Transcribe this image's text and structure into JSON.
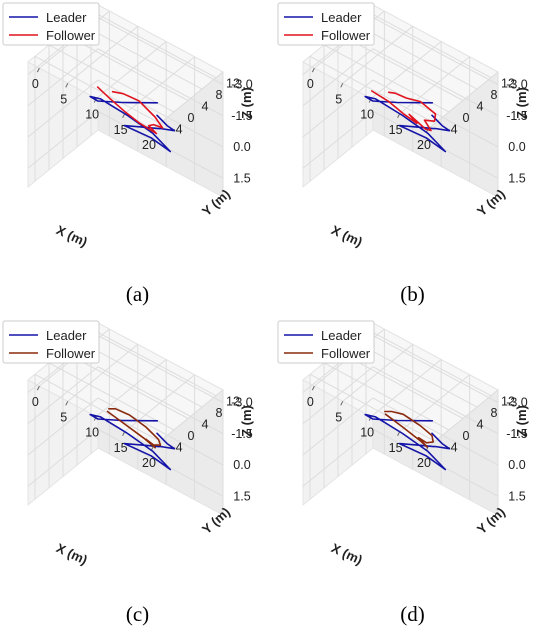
{
  "chart_data": [
    {
      "type": "line",
      "caption": "(a)",
      "xlabel": "X (m)",
      "ylabel": "Y (m)",
      "zlabel": "Z (m)",
      "xticks": [
        "0",
        "5",
        "10",
        "15",
        "20"
      ],
      "yticks": [
        "-4",
        "0",
        "4",
        "8",
        "12"
      ],
      "zticks": [
        "-3.0",
        "-1.5",
        "0.0",
        "1.5"
      ],
      "grid": true,
      "legend_position": "top-left",
      "series": [
        {
          "name": "Leader",
          "color": "#1414a8",
          "x": [
            14.6,
            10.0,
            5.6,
            3.4,
            4.0,
            7.4,
            11.6,
            15.4,
            12.4,
            9.2,
            12.6,
            14.4,
            15.0,
            17.6,
            17.8,
            17.0
          ],
          "y": [
            4.0,
            1.4,
            1.6,
            3.0,
            5.0,
            7.2,
            7.6,
            6.4,
            5.8,
            3.4,
            4.2,
            4.6,
            4.2,
            4.0,
            1.6,
            0.0
          ],
          "z": [
            -2.7,
            -2.4,
            -1.8,
            -1.5,
            -1.2,
            -0.6,
            -0.3,
            -0.15,
            -0.45,
            -0.9,
            -1.2,
            -1.35,
            -1.5,
            -1.8,
            -2.4,
            -3.0
          ]
        },
        {
          "name": "Follower",
          "color": "#e0141e",
          "x": [
            4.6,
            6.0,
            8.4,
            10.6,
            13.2,
            12.6,
            14.2,
            16.4,
            15.8,
            13.2,
            10.2,
            7.6
          ],
          "y": [
            3.2,
            4.2,
            5.0,
            5.6,
            6.0,
            4.8,
            3.6,
            2.6,
            1.4,
            1.0,
            1.4,
            2.6
          ],
          "z": [
            -2.1,
            -1.65,
            -1.2,
            -0.9,
            -0.75,
            -1.2,
            -1.65,
            -1.95,
            -2.55,
            -3.0,
            -2.85,
            -2.4
          ]
        }
      ]
    },
    {
      "type": "line",
      "caption": "(b)",
      "xlabel": "X (m)",
      "ylabel": "Y (m)",
      "zlabel": "Z (m)",
      "xticks": [
        "0",
        "5",
        "10",
        "15",
        "20"
      ],
      "yticks": [
        "-4",
        "0",
        "4",
        "8",
        "12"
      ],
      "zticks": [
        "-3.0",
        "-1.5",
        "0.0",
        "1.5"
      ],
      "grid": true,
      "legend_position": "top-left",
      "series": [
        {
          "name": "Leader",
          "color": "#1414a8",
          "x": [
            14.6,
            10.0,
            5.6,
            3.4,
            4.0,
            7.4,
            11.6,
            15.4,
            12.4,
            9.2,
            12.6,
            14.4,
            15.0,
            17.6,
            17.8,
            17.0
          ],
          "y": [
            4.0,
            1.4,
            1.6,
            3.0,
            5.0,
            7.2,
            7.6,
            6.4,
            5.8,
            3.4,
            4.2,
            4.6,
            4.2,
            4.0,
            1.6,
            0.0
          ],
          "z": [
            -2.7,
            -2.4,
            -1.8,
            -1.5,
            -1.2,
            -0.6,
            -0.3,
            -0.15,
            -0.45,
            -0.9,
            -1.2,
            -1.35,
            -1.5,
            -1.8,
            -2.4,
            -3.0
          ]
        },
        {
          "name": "Follower",
          "color": "#e0141e",
          "x": [
            4.2,
            6.6,
            9.0,
            11.0,
            10.4,
            12.4,
            14.0,
            13.6,
            15.6,
            16.4,
            14.0,
            11.6,
            9.4,
            7.8
          ],
          "y": [
            3.6,
            4.6,
            5.0,
            5.4,
            4.2,
            5.6,
            4.6,
            3.4,
            3.0,
            2.0,
            1.6,
            1.4,
            1.8,
            2.6
          ],
          "z": [
            -1.8,
            -1.5,
            -1.2,
            -1.0,
            -1.5,
            -0.9,
            -1.2,
            -1.8,
            -2.1,
            -2.7,
            -3.0,
            -2.85,
            -2.7,
            -2.4
          ]
        }
      ]
    },
    {
      "type": "line",
      "caption": "(c)",
      "xlabel": "X (m)",
      "ylabel": "Y (m)",
      "zlabel": "Z (m)",
      "xticks": [
        "0",
        "5",
        "10",
        "15",
        "20"
      ],
      "yticks": [
        "-4",
        "0",
        "4",
        "8",
        "12"
      ],
      "zticks": [
        "-3.0",
        "-1.5",
        "0.0",
        "1.5"
      ],
      "grid": true,
      "legend_position": "top-left",
      "series": [
        {
          "name": "Leader",
          "color": "#1414a8",
          "x": [
            14.6,
            10.0,
            5.6,
            3.4,
            4.0,
            7.4,
            11.6,
            15.4,
            12.4,
            9.2,
            12.6,
            14.4,
            15.0,
            17.6,
            17.8,
            17.0
          ],
          "y": [
            4.0,
            1.4,
            1.6,
            3.0,
            5.0,
            7.2,
            7.6,
            6.4,
            5.8,
            3.4,
            4.2,
            4.6,
            4.2,
            4.0,
            1.6,
            0.0
          ],
          "z": [
            -2.7,
            -2.4,
            -1.8,
            -1.5,
            -1.2,
            -0.6,
            -0.3,
            -0.15,
            -0.45,
            -0.9,
            -1.2,
            -1.35,
            -1.5,
            -1.8,
            -2.4,
            -3.0
          ]
        },
        {
          "name": "Follower",
          "color": "#8b2a0c",
          "x": [
            6.2,
            8.8,
            11.4,
            13.0,
            12.0,
            13.8,
            15.4,
            15.8,
            14.2,
            11.4,
            8.6,
            6.8
          ],
          "y": [
            3.4,
            4.4,
            5.4,
            6.0,
            5.0,
            4.2,
            3.6,
            2.4,
            1.4,
            1.2,
            1.8,
            2.8
          ],
          "z": [
            -2.0,
            -1.6,
            -1.2,
            -0.9,
            -1.3,
            -1.4,
            -1.7,
            -2.2,
            -2.7,
            -2.9,
            -2.7,
            -2.3
          ]
        }
      ]
    },
    {
      "type": "line",
      "caption": "(d)",
      "xlabel": "X (m)",
      "ylabel": "Y (m)",
      "zlabel": "Z (m)",
      "xticks": [
        "0",
        "5",
        "10",
        "15",
        "20"
      ],
      "yticks": [
        "-4",
        "0",
        "4",
        "8",
        "12"
      ],
      "zticks": [
        "-3.0",
        "-1.5",
        "0.0",
        "1.5"
      ],
      "grid": true,
      "legend_position": "top-left",
      "series": [
        {
          "name": "Leader",
          "color": "#1414a8",
          "x": [
            14.6,
            10.0,
            5.6,
            3.4,
            4.0,
            7.4,
            11.6,
            15.4,
            12.4,
            9.2,
            12.6,
            14.4,
            15.0,
            17.6,
            17.8,
            17.0
          ],
          "y": [
            4.0,
            1.4,
            1.6,
            3.0,
            5.0,
            7.2,
            7.6,
            6.4,
            5.8,
            3.4,
            4.2,
            4.6,
            4.2,
            4.0,
            1.6,
            0.0
          ],
          "z": [
            -2.7,
            -2.4,
            -1.8,
            -1.5,
            -1.2,
            -0.6,
            -0.3,
            -0.15,
            -0.45,
            -0.9,
            -1.2,
            -1.35,
            -1.5,
            -1.8,
            -2.4,
            -3.0
          ]
        },
        {
          "name": "Follower",
          "color": "#8b2a0c",
          "x": [
            6.6,
            9.0,
            11.8,
            12.6,
            11.8,
            13.6,
            15.0,
            15.4,
            14.0,
            11.2,
            8.8,
            7.0
          ],
          "y": [
            3.6,
            4.6,
            5.4,
            5.8,
            4.6,
            4.0,
            3.6,
            2.6,
            1.6,
            1.2,
            1.8,
            2.8
          ],
          "z": [
            -1.9,
            -1.5,
            -1.1,
            -0.9,
            -1.4,
            -1.5,
            -1.8,
            -2.3,
            -2.7,
            -2.9,
            -2.6,
            -2.2
          ]
        }
      ]
    }
  ]
}
